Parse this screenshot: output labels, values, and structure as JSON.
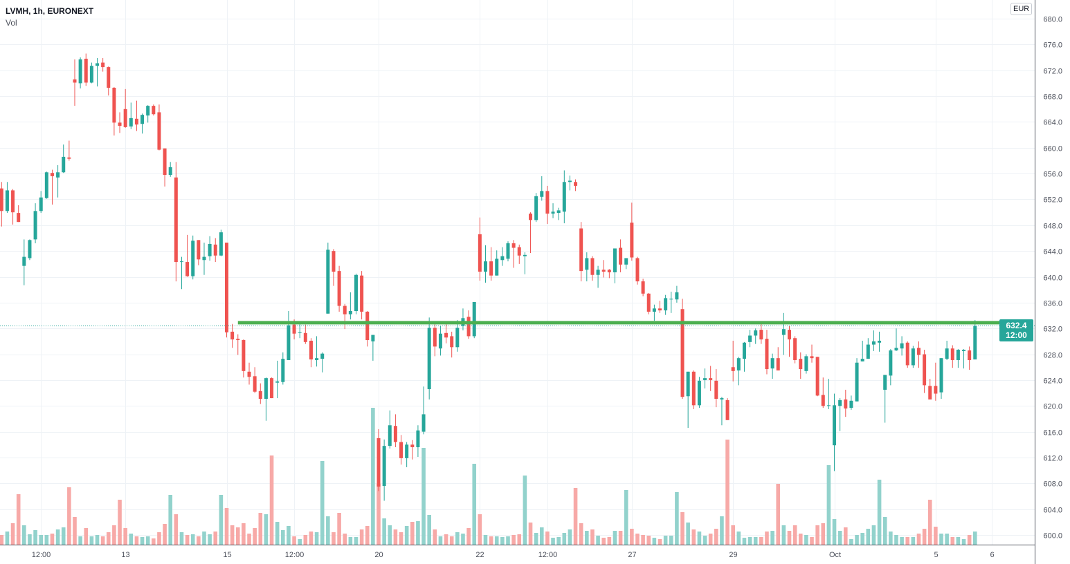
{
  "header": {
    "title": "LVMH, 1h, EURONEXT",
    "volume_label": "Vol",
    "currency": "EUR"
  },
  "last_price": {
    "price": "632.4",
    "time": "12:00"
  },
  "colors": {
    "up": "#26a69a",
    "down": "#ef5350",
    "volume_up": "#92d2cc",
    "volume_down": "#f7a9a7",
    "resistance_line": "#4caf50",
    "grid": "#eef2f6"
  },
  "chart_data": {
    "type": "candlestick",
    "title": "LVMH, 1h, EURONEXT",
    "ylim": [
      598.5,
      682.9
    ],
    "grid": true,
    "y_ticks": [
      "600.0",
      "604.0",
      "608.0",
      "612.0",
      "616.0",
      "620.0",
      "624.0",
      "628.0",
      "632.0",
      "636.0",
      "640.0",
      "644.0",
      "648.0",
      "652.0",
      "656.0",
      "660.0",
      "664.0",
      "668.0",
      "672.0",
      "676.0",
      "680.0"
    ],
    "x_ticks": [
      {
        "label": "12:00",
        "bar": 7
      },
      {
        "label": "13",
        "bar": 22
      },
      {
        "label": "15",
        "bar": 40
      },
      {
        "label": "12:00",
        "bar": 52
      },
      {
        "label": "20",
        "bar": 67
      },
      {
        "label": "22",
        "bar": 85
      },
      {
        "label": "12:00",
        "bar": 97
      },
      {
        "label": "27",
        "bar": 112
      },
      {
        "label": "29",
        "bar": 130
      },
      {
        "label": "Oct",
        "bar": 148
      },
      {
        "label": "5",
        "bar": 166
      },
      {
        "label": "6",
        "bar": 176
      }
    ],
    "horizontal_line": {
      "price": 632.9,
      "start_bar": 42,
      "end_bar": 181
    },
    "last_close": 632.4,
    "ohlc_fields": [
      "open",
      "high",
      "low",
      "close"
    ],
    "candles": [
      [
        653.7,
        654.7,
        647.8,
        650.2
      ],
      [
        650.2,
        654.7,
        649.9,
        653.4
      ],
      [
        653.4,
        653.6,
        648.1,
        650.0
      ],
      [
        649.9,
        651.1,
        648.5,
        648.5
      ],
      [
        641.7,
        645.8,
        638.7,
        643.1
      ],
      [
        642.9,
        645.8,
        642.6,
        645.7
      ],
      [
        645.8,
        651.4,
        645.2,
        650.2
      ],
      [
        650.2,
        653.3,
        649.9,
        652.3
      ],
      [
        652.2,
        656.3,
        652.1,
        656.2
      ],
      [
        656.1,
        656.6,
        651.2,
        655.6
      ],
      [
        655.4,
        657.3,
        652.3,
        656.2
      ],
      [
        656.2,
        660.5,
        656.1,
        658.6
      ],
      [
        658.5,
        661.1,
        658.0,
        658.3
      ],
      [
        670.6,
        673.7,
        666.5,
        670.1
      ],
      [
        670.0,
        674.0,
        669.2,
        673.7
      ],
      [
        673.8,
        674.6,
        669.6,
        670.1
      ],
      [
        670.1,
        673.2,
        670.0,
        672.7
      ],
      [
        672.7,
        673.9,
        669.5,
        673.1
      ],
      [
        673.2,
        673.9,
        671.8,
        672.5
      ],
      [
        672.5,
        672.6,
        668.1,
        669.3
      ],
      [
        669.3,
        669.4,
        661.9,
        663.9
      ],
      [
        663.9,
        665.5,
        662.3,
        663.4
      ],
      [
        666.0,
        669.1,
        663.1,
        663.2
      ],
      [
        663.3,
        667.0,
        662.9,
        664.6
      ],
      [
        664.5,
        667.3,
        662.6,
        663.6
      ],
      [
        663.7,
        665.3,
        662.2,
        665.1
      ],
      [
        665.0,
        666.6,
        663.9,
        666.5
      ],
      [
        666.5,
        666.7,
        665.0,
        665.2
      ],
      [
        665.5,
        666.7,
        659.6,
        659.7
      ],
      [
        659.9,
        659.9,
        654.0,
        655.8
      ],
      [
        655.8,
        657.8,
        655.5,
        657.0
      ],
      [
        655.4,
        657.8,
        639.3,
        642.3
      ],
      [
        642.3,
        643.1,
        638.1,
        642.4
      ],
      [
        642.3,
        646.5,
        640.0,
        640.1
      ],
      [
        640.1,
        646.4,
        639.6,
        645.6
      ],
      [
        645.7,
        645.7,
        641.8,
        642.7
      ],
      [
        642.6,
        645.3,
        640.3,
        643.1
      ],
      [
        643.2,
        646.3,
        642.5,
        645.1
      ],
      [
        645.0,
        646.0,
        642.3,
        643.3
      ],
      [
        643.3,
        647.3,
        643.2,
        646.9
      ],
      [
        645.3,
        645.3,
        630.6,
        631.4
      ],
      [
        631.5,
        632.7,
        629.0,
        630.3
      ],
      [
        630.4,
        631.1,
        627.9,
        630.2
      ],
      [
        630.2,
        630.3,
        624.4,
        625.4
      ],
      [
        625.3,
        626.7,
        623.3,
        624.5
      ],
      [
        624.6,
        626.0,
        622.0,
        622.2
      ],
      [
        622.3,
        623.5,
        620.3,
        621.1
      ],
      [
        621.1,
        624.4,
        617.7,
        624.3
      ],
      [
        624.3,
        624.4,
        621.2,
        621.2
      ],
      [
        623.6,
        627.0,
        621.2,
        623.8
      ],
      [
        623.7,
        628.3,
        623.3,
        627.3
      ],
      [
        627.1,
        634.7,
        627.1,
        632.5
      ],
      [
        632.6,
        633.4,
        630.3,
        631.2
      ],
      [
        631.3,
        632.7,
        630.5,
        631.4
      ],
      [
        631.3,
        632.6,
        629.6,
        629.9
      ],
      [
        630.1,
        630.5,
        626.0,
        627.2
      ],
      [
        627.1,
        630.8,
        626.1,
        627.4
      ],
      [
        627.3,
        628.3,
        625.2,
        628.1
      ],
      [
        634.3,
        645.3,
        634.3,
        644.2
      ],
      [
        644.0,
        644.3,
        638.6,
        640.8
      ],
      [
        640.9,
        641.7,
        634.6,
        635.5
      ],
      [
        635.5,
        635.8,
        631.9,
        634.2
      ],
      [
        634.2,
        637.6,
        633.4,
        634.7
      ],
      [
        634.7,
        640.5,
        634.2,
        640.3
      ],
      [
        640.2,
        640.9,
        633.4,
        634.6
      ],
      [
        634.6,
        634.7,
        629.2,
        630.2
      ],
      [
        630.0,
        631.0,
        627.0,
        631.0
      ],
      [
        615.0,
        616.4,
        606.8,
        607.5
      ],
      [
        607.6,
        614.8,
        605.3,
        613.8
      ],
      [
        613.8,
        619.3,
        613.4,
        617.0
      ],
      [
        616.9,
        618.7,
        613.6,
        614.4
      ],
      [
        614.4,
        615.5,
        610.9,
        611.9
      ],
      [
        611.9,
        614.4,
        610.5,
        614.0
      ],
      [
        614.0,
        614.7,
        611.7,
        613.6
      ],
      [
        613.6,
        617.0,
        612.1,
        616.2
      ],
      [
        616.0,
        623.0,
        615.6,
        618.7
      ],
      [
        622.6,
        633.7,
        621.0,
        632.1
      ],
      [
        632.1,
        633.0,
        627.7,
        629.2
      ],
      [
        628.9,
        632.4,
        627.8,
        631.2
      ],
      [
        631.3,
        633.0,
        629.7,
        630.6
      ],
      [
        630.8,
        631.5,
        627.5,
        629.1
      ],
      [
        629.1,
        633.3,
        628.4,
        632.1
      ],
      [
        632.4,
        635.1,
        631.7,
        633.6
      ],
      [
        633.8,
        634.8,
        630.4,
        630.8
      ],
      [
        630.8,
        636.1,
        630.5,
        636.1
      ],
      [
        646.6,
        649.2,
        639.4,
        640.8
      ],
      [
        640.8,
        644.9,
        639.1,
        642.4
      ],
      [
        642.4,
        644.6,
        639.4,
        640.2
      ],
      [
        640.2,
        644.1,
        640.2,
        642.8
      ],
      [
        642.6,
        644.6,
        641.7,
        643.2
      ],
      [
        642.8,
        645.5,
        642.4,
        645.2
      ],
      [
        645.2,
        645.7,
        641.4,
        644.5
      ],
      [
        644.6,
        645.0,
        642.0,
        643.3
      ],
      [
        643.2,
        643.8,
        640.4,
        643.4
      ],
      [
        649.8,
        650.0,
        643.7,
        648.8
      ],
      [
        648.8,
        653.0,
        648.5,
        652.5
      ],
      [
        652.4,
        655.6,
        651.8,
        653.3
      ],
      [
        653.3,
        654.1,
        648.2,
        649.8
      ],
      [
        649.8,
        651.4,
        649.1,
        650.1
      ],
      [
        649.9,
        650.7,
        648.8,
        650.3
      ],
      [
        650.1,
        656.5,
        648.3,
        654.7
      ],
      [
        654.7,
        655.7,
        653.4,
        654.9
      ],
      [
        654.7,
        655.1,
        653.3,
        654.1
      ],
      [
        647.5,
        648.5,
        639.3,
        640.9
      ],
      [
        641.1,
        643.8,
        639.3,
        642.9
      ],
      [
        642.9,
        643.2,
        639.4,
        640.3
      ],
      [
        640.3,
        641.7,
        638.3,
        641.1
      ],
      [
        641.1,
        642.6,
        639.9,
        640.8
      ],
      [
        641.1,
        641.2,
        639.8,
        640.7
      ],
      [
        640.7,
        644.4,
        639.0,
        644.4
      ],
      [
        644.5,
        645.8,
        640.7,
        641.9
      ],
      [
        641.9,
        642.9,
        641.2,
        642.9
      ],
      [
        648.4,
        651.5,
        642.5,
        643.0
      ],
      [
        642.9,
        643.1,
        638.8,
        639.3
      ],
      [
        639.3,
        639.7,
        637.0,
        637.4
      ],
      [
        637.4,
        637.5,
        634.2,
        634.6
      ],
      [
        634.6,
        635.7,
        633.2,
        635.1
      ],
      [
        635.1,
        636.3,
        634.4,
        634.8
      ],
      [
        634.8,
        637.2,
        634.1,
        636.7
      ],
      [
        636.5,
        637.7,
        634.4,
        636.6
      ],
      [
        636.5,
        638.6,
        636.0,
        637.6
      ],
      [
        635.0,
        636.6,
        621.1,
        621.4
      ],
      [
        621.5,
        625.3,
        616.6,
        625.3
      ],
      [
        625.3,
        625.5,
        619.5,
        620.1
      ],
      [
        620.1,
        624.5,
        619.7,
        623.9
      ],
      [
        624.0,
        625.8,
        622.7,
        624.3
      ],
      [
        624.3,
        626.2,
        622.3,
        624.0
      ],
      [
        623.9,
        625.7,
        619.8,
        621.1
      ],
      [
        621.0,
        621.4,
        617.0,
        621.2
      ],
      [
        620.9,
        621.2,
        617.8,
        617.8
      ],
      [
        626.0,
        630.1,
        623.8,
        625.4
      ],
      [
        625.5,
        627.6,
        623.2,
        627.4
      ],
      [
        627.3,
        629.9,
        625.3,
        629.8
      ],
      [
        629.9,
        631.8,
        629.1,
        630.9
      ],
      [
        630.9,
        632.0,
        629.6,
        631.7
      ],
      [
        631.8,
        632.9,
        629.6,
        630.3
      ],
      [
        630.4,
        631.8,
        624.9,
        625.7
      ],
      [
        625.8,
        628.1,
        624.2,
        627.4
      ],
      [
        627.4,
        629.1,
        625.5,
        625.5
      ],
      [
        631.0,
        634.4,
        627.9,
        631.9
      ],
      [
        631.8,
        632.4,
        627.6,
        630.3
      ],
      [
        630.5,
        630.8,
        626.6,
        627.1
      ],
      [
        627.3,
        628.3,
        624.2,
        625.7
      ],
      [
        625.4,
        628.0,
        625.0,
        627.7
      ],
      [
        627.7,
        629.5,
        626.7,
        627.4
      ],
      [
        627.6,
        627.6,
        621.5,
        621.6
      ],
      [
        621.7,
        624.4,
        619.7,
        620.0
      ],
      [
        620.0,
        624.2,
        619.5,
        620.1
      ],
      [
        613.9,
        621.9,
        609.9,
        620.1
      ],
      [
        620.0,
        621.2,
        616.1,
        620.9
      ],
      [
        621.0,
        622.5,
        618.3,
        619.6
      ],
      [
        619.7,
        621.6,
        619.4,
        620.8
      ],
      [
        620.7,
        627.4,
        620.7,
        626.7
      ],
      [
        626.9,
        630.1,
        626.9,
        627.3
      ],
      [
        627.3,
        630.5,
        627.3,
        629.5
      ],
      [
        629.5,
        631.7,
        628.5,
        630.0
      ],
      [
        629.8,
        631.5,
        628.4,
        630.1
      ],
      [
        622.5,
        624.8,
        617.4,
        624.8
      ],
      [
        624.7,
        628.8,
        623.2,
        628.6
      ],
      [
        628.6,
        632.0,
        628.5,
        629.0
      ],
      [
        628.9,
        630.8,
        627.8,
        629.7
      ],
      [
        629.8,
        630.0,
        625.9,
        626.3
      ],
      [
        626.3,
        629.3,
        625.9,
        628.9
      ],
      [
        629.0,
        630.0,
        625.9,
        627.9
      ],
      [
        628.0,
        628.7,
        622.0,
        623.2
      ],
      [
        623.1,
        624.2,
        621.0,
        621.0
      ],
      [
        623.1,
        626.7,
        620.8,
        621.9
      ],
      [
        622.1,
        627.4,
        621.1,
        627.4
      ],
      [
        627.3,
        630.1,
        627.1,
        628.9
      ],
      [
        628.9,
        629.4,
        625.9,
        627.1
      ],
      [
        627.1,
        628.8,
        625.9,
        628.7
      ],
      [
        628.5,
        628.8,
        625.8,
        628.7
      ],
      [
        628.6,
        629.2,
        625.6,
        627.1
      ],
      [
        627.2,
        633.3,
        627.2,
        632.4
      ]
    ],
    "volume_relative": [
      14,
      19,
      31,
      73,
      28,
      15,
      21,
      14,
      14,
      16,
      22,
      25,
      83,
      40,
      12,
      24,
      12,
      14,
      12,
      18,
      28,
      65,
      24,
      16,
      12,
      11,
      12,
      9,
      18,
      30,
      72,
      44,
      18,
      14,
      15,
      12,
      19,
      15,
      19,
      72,
      53,
      28,
      25,
      31,
      16,
      24,
      46,
      44,
      129,
      33,
      21,
      27,
      12,
      8,
      14,
      19,
      18,
      121,
      41,
      18,
      46,
      16,
      11,
      11,
      22,
      27,
      198,
      88,
      38,
      28,
      22,
      18,
      27,
      33,
      34,
      140,
      43,
      22,
      12,
      15,
      12,
      18,
      16,
      24,
      117,
      44,
      14,
      12,
      12,
      11,
      12,
      14,
      15,
      100,
      32,
      17,
      25,
      19,
      10,
      11,
      17,
      22,
      82,
      31,
      20,
      22,
      13,
      10,
      11,
      20,
      20,
      79,
      23,
      16,
      14,
      13,
      10,
      8,
      13,
      13,
      76,
      47,
      32,
      22,
      19,
      13,
      16,
      23,
      41,
      152,
      28,
      19,
      10,
      11,
      11,
      11,
      19,
      20,
      88,
      28,
      20,
      28,
      16,
      14,
      11,
      28,
      31,
      115,
      37,
      20,
      25,
      8,
      14,
      17,
      23,
      28,
      94,
      40,
      19,
      14,
      11,
      11,
      11,
      16,
      23,
      65,
      26,
      16,
      16,
      11,
      11,
      8,
      14,
      19
    ],
    "volume_ylim": [
      0,
      200
    ]
  }
}
